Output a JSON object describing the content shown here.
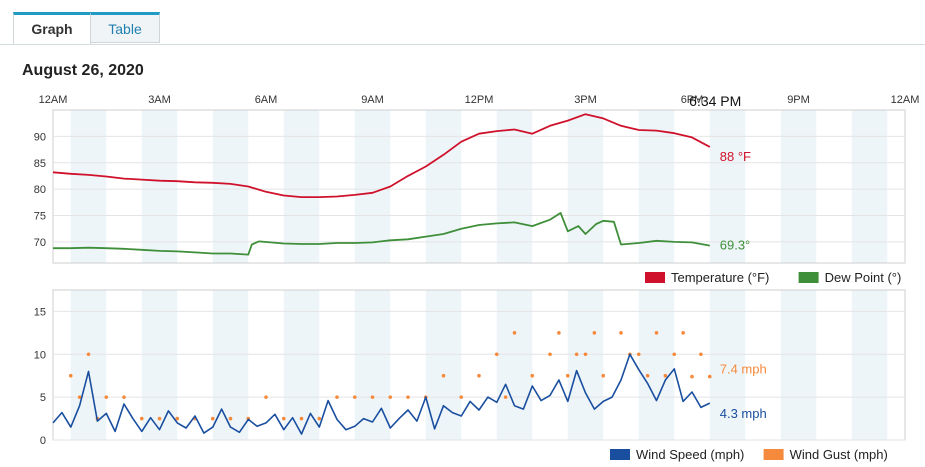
{
  "tabs": [
    {
      "label": "Graph"
    },
    {
      "label": "Table"
    }
  ],
  "date_label": "August 26, 2020",
  "time_labels": [
    "12AM",
    "3AM",
    "6AM",
    "9AM",
    "12PM",
    "3PM",
    "6PM",
    "9PM",
    "12AM"
  ],
  "cursor": {
    "time_label": "6:34 PM",
    "hour": 18.57
  },
  "colors": {
    "temperature": "#d0112b",
    "dew_point": "#3f8f3a",
    "wind_speed": "#1a4fa0",
    "wind_gust": "#f58a3c",
    "band": "#eef5f9",
    "grid": "#e4e4e4"
  },
  "chart_data": [
    {
      "type": "line",
      "x_unit": "hour of day",
      "xlim": [
        0,
        24
      ],
      "ylim": [
        66,
        95
      ],
      "yticks": [
        70,
        75,
        80,
        85,
        90
      ],
      "series": [
        {
          "name": "Temperature (°F)",
          "current_label": "88 °F",
          "x": [
            0,
            0.5,
            1,
            1.5,
            2,
            2.5,
            3,
            3.5,
            4,
            4.5,
            5,
            5.5,
            6,
            6.5,
            7,
            7.5,
            8,
            8.5,
            9,
            9.5,
            10,
            10.5,
            11,
            11.5,
            12,
            12.5,
            13,
            13.5,
            14,
            14.5,
            15,
            15.5,
            16,
            16.5,
            17,
            17.5,
            18,
            18.5
          ],
          "y": [
            83.2,
            82.9,
            82.7,
            82.4,
            82.0,
            81.8,
            81.6,
            81.5,
            81.3,
            81.2,
            81.0,
            80.5,
            79.5,
            78.8,
            78.5,
            78.5,
            78.6,
            78.9,
            79.3,
            80.5,
            82.5,
            84.3,
            86.5,
            89.0,
            90.5,
            91.0,
            91.3,
            90.5,
            92.0,
            93.0,
            94.2,
            93.4,
            92.0,
            91.2,
            91.1,
            90.6,
            89.8,
            88.0
          ]
        },
        {
          "name": "Dew Point (°)",
          "current_label": "69.3°",
          "x": [
            0,
            0.5,
            1,
            1.5,
            2,
            2.5,
            3,
            3.5,
            4,
            4.5,
            5,
            5.5,
            5.6,
            5.8,
            6.5,
            7,
            7.5,
            8,
            8.5,
            9,
            9.5,
            10,
            10.5,
            11,
            11.5,
            12,
            12.5,
            13,
            13.5,
            14,
            14.3,
            14.5,
            14.8,
            15,
            15.3,
            15.5,
            15.8,
            16,
            16.5,
            17,
            17.5,
            18,
            18.5
          ],
          "y": [
            68.8,
            68.8,
            68.9,
            68.8,
            68.7,
            68.5,
            68.3,
            68.2,
            68.0,
            67.8,
            67.8,
            67.6,
            69.5,
            70.1,
            69.7,
            69.6,
            69.6,
            69.8,
            69.8,
            69.9,
            70.3,
            70.5,
            71.0,
            71.5,
            72.5,
            73.2,
            73.5,
            73.7,
            73.0,
            74.2,
            75.5,
            72.0,
            73.0,
            71.5,
            73.4,
            74.0,
            73.8,
            69.5,
            69.8,
            70.2,
            70.0,
            69.9,
            69.3
          ]
        }
      ]
    },
    {
      "type": "line",
      "x_unit": "hour of day",
      "xlim": [
        0,
        24
      ],
      "ylim": [
        0,
        17.5
      ],
      "yticks": [
        0,
        5,
        10,
        15
      ],
      "series": [
        {
          "name": "Wind Speed (mph)",
          "current_label": "4.3 mph",
          "x": [
            0,
            0.25,
            0.5,
            0.75,
            1,
            1.25,
            1.5,
            1.75,
            2,
            2.25,
            2.5,
            2.75,
            3,
            3.25,
            3.5,
            3.75,
            4,
            4.25,
            4.5,
            4.75,
            5,
            5.25,
            5.5,
            5.75,
            6,
            6.25,
            6.5,
            6.75,
            7,
            7.25,
            7.5,
            7.75,
            8,
            8.25,
            8.5,
            8.75,
            9,
            9.25,
            9.5,
            9.75,
            10,
            10.25,
            10.5,
            10.75,
            11,
            11.25,
            11.5,
            11.75,
            12,
            12.25,
            12.5,
            12.75,
            13,
            13.25,
            13.5,
            13.75,
            14,
            14.25,
            14.5,
            14.75,
            15,
            15.25,
            15.5,
            15.75,
            16,
            16.25,
            16.5,
            16.75,
            17,
            17.25,
            17.5,
            17.75,
            18,
            18.25,
            18.5
          ],
          "y": [
            2.0,
            3.2,
            1.5,
            4.0,
            8.0,
            2.2,
            3.1,
            1.0,
            4.2,
            2.5,
            1.0,
            2.6,
            1.2,
            3.4,
            2.0,
            1.4,
            2.8,
            0.8,
            1.5,
            3.6,
            1.5,
            0.9,
            2.4,
            1.6,
            2.0,
            3.0,
            1.2,
            2.6,
            0.7,
            3.1,
            1.5,
            4.6,
            2.4,
            1.2,
            1.6,
            2.5,
            2.1,
            3.7,
            1.4,
            2.5,
            3.5,
            2.2,
            5.0,
            1.3,
            4.0,
            3.2,
            2.8,
            4.5,
            3.5,
            5.0,
            4.4,
            6.5,
            4.0,
            3.6,
            6.3,
            4.6,
            5.2,
            7.0,
            4.5,
            8.1,
            5.5,
            3.6,
            4.5,
            5.0,
            7.0,
            10.0,
            8.2,
            6.6,
            4.6,
            7.0,
            8.3,
            4.5,
            5.6,
            3.8,
            4.3
          ]
        },
        {
          "name": "Wind Gust (mph)",
          "current_label": "7.4 mph",
          "x": [
            0.5,
            0.75,
            1,
            1.25,
            1.5,
            2,
            2.5,
            3,
            3.5,
            4,
            4.5,
            5,
            5.5,
            6,
            6.5,
            7,
            7.5,
            8,
            8.5,
            9,
            9.5,
            10,
            10.5,
            11,
            11.5,
            12,
            12.5,
            12.75,
            13,
            13.5,
            14,
            14.25,
            14.5,
            14.75,
            15,
            15.25,
            15.5,
            16,
            16.25,
            16.5,
            16.75,
            17,
            17.25,
            17.5,
            17.75,
            18,
            18.25,
            18.5
          ],
          "y": [
            7.5,
            5.0,
            10.0,
            2.5,
            5.0,
            5.0,
            2.5,
            2.5,
            2.5,
            2.5,
            2.5,
            2.5,
            2.5,
            5.0,
            2.5,
            2.5,
            2.5,
            5.0,
            5.0,
            5.0,
            5.0,
            5.0,
            5.0,
            7.5,
            5.0,
            7.5,
            10.0,
            5.0,
            12.5,
            7.5,
            10.0,
            12.5,
            7.5,
            10.0,
            10.0,
            12.5,
            7.5,
            12.5,
            10.0,
            10.0,
            7.5,
            12.5,
            7.5,
            10.0,
            12.5,
            7.4,
            10.0,
            7.4
          ]
        }
      ]
    }
  ]
}
